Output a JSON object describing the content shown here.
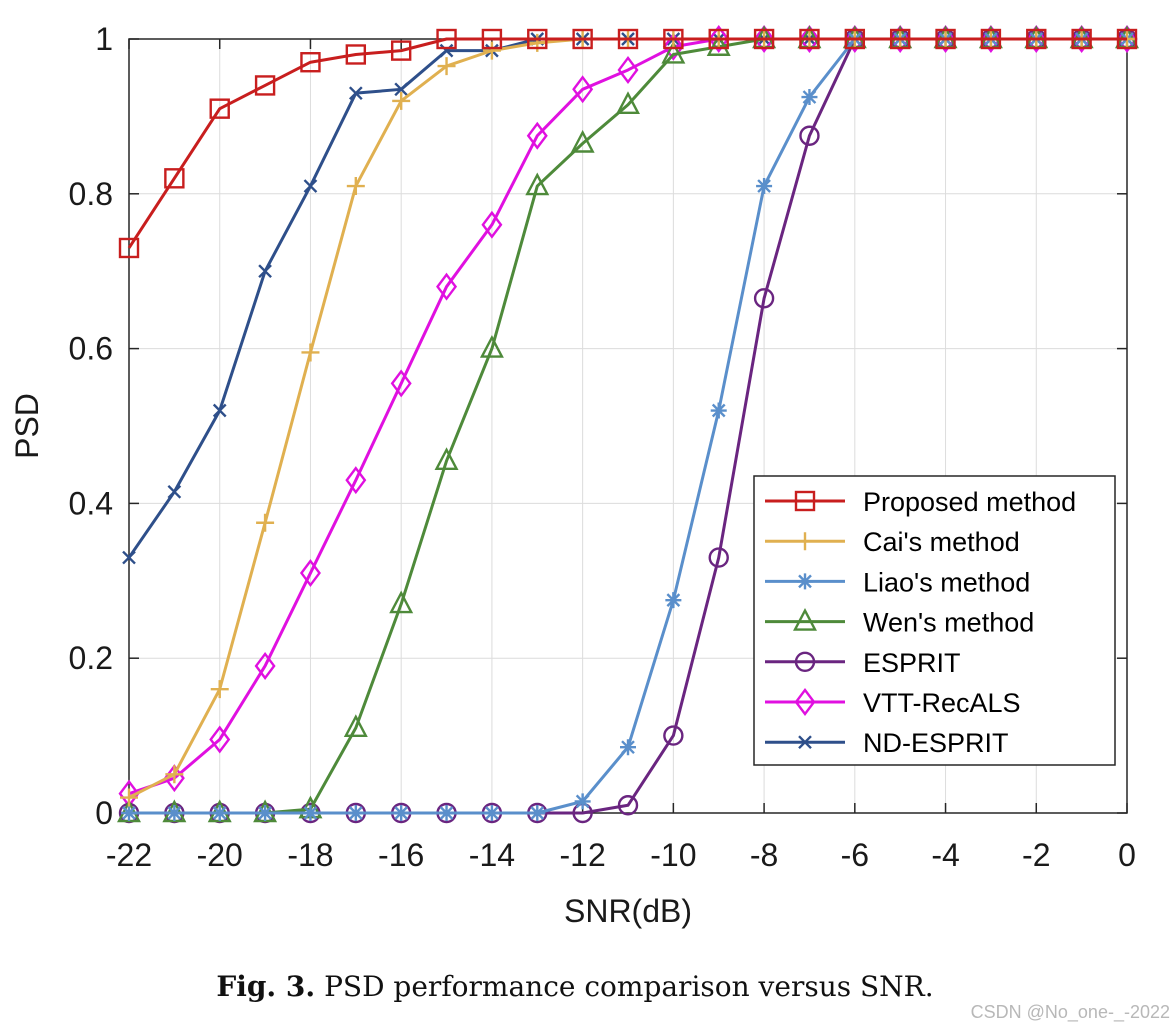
{
  "chart_data": {
    "type": "line",
    "title": "",
    "xlabel": "SNR(dB)",
    "ylabel": "PSD",
    "xlim": [
      -22,
      0
    ],
    "ylim": [
      0,
      1
    ],
    "grid": true,
    "legend_position": "bottom-right",
    "x": [
      -22,
      -21,
      -20,
      -19,
      -18,
      -17,
      -16,
      -15,
      -14,
      -13,
      -12,
      -11,
      -10,
      -9,
      -8,
      -7,
      -6,
      -5,
      -4,
      -3,
      -2,
      -1,
      0
    ],
    "xticks": [
      -22,
      -20,
      -18,
      -16,
      -14,
      -12,
      -10,
      -8,
      -6,
      -4,
      -2,
      0
    ],
    "xtick_labels": [
      "-22",
      "-20",
      "-18",
      "-16",
      "-14",
      "-12",
      "-10",
      "-8",
      "-6",
      "-4",
      "-2",
      "0"
    ],
    "yticks": [
      0,
      0.2,
      0.4,
      0.6,
      0.8,
      1
    ],
    "ytick_labels": [
      "0",
      "0.2",
      "0.4",
      "0.6",
      "0.8",
      "1"
    ],
    "series": [
      {
        "name": "Proposed method",
        "color": "#C81E1E",
        "marker": "square",
        "values": [
          0.73,
          0.82,
          0.91,
          0.94,
          0.97,
          0.98,
          0.985,
          1,
          1,
          1,
          1,
          1,
          1,
          1,
          1,
          1,
          1,
          1,
          1,
          1,
          1,
          1,
          1
        ]
      },
      {
        "name": "Cai's method",
        "color": "#E0B050",
        "marker": "plus",
        "values": [
          0.02,
          0.05,
          0.16,
          0.375,
          0.595,
          0.81,
          0.92,
          0.965,
          0.985,
          0.995,
          1,
          1,
          1,
          1,
          1,
          1,
          1,
          1,
          1,
          1,
          1,
          1,
          1
        ]
      },
      {
        "name": "Liao's method",
        "color": "#5A8FCB",
        "marker": "asterisk",
        "values": [
          0,
          0,
          0,
          0,
          0,
          0,
          0,
          0,
          0,
          0,
          0.015,
          0.085,
          0.275,
          0.52,
          0.81,
          0.925,
          1,
          1,
          1,
          1,
          1,
          1,
          1
        ]
      },
      {
        "name": "Wen's method",
        "color": "#4E8A3A",
        "marker": "triangle",
        "values": [
          0,
          0,
          0,
          0,
          0.005,
          0.11,
          0.27,
          0.455,
          0.6,
          0.81,
          0.865,
          0.915,
          0.98,
          0.99,
          1,
          1,
          1,
          1,
          1,
          1,
          1,
          1,
          1
        ]
      },
      {
        "name": "ESPRIT",
        "color": "#6A2580",
        "marker": "circle",
        "values": [
          0,
          0,
          0,
          0,
          0,
          0,
          0,
          0,
          0,
          0,
          0,
          0.01,
          0.1,
          0.33,
          0.665,
          0.875,
          1,
          1,
          1,
          1,
          1,
          1,
          1
        ]
      },
      {
        "name": "VTT-RecALS",
        "color": "#E010E0",
        "marker": "diamond",
        "values": [
          0.025,
          0.045,
          0.095,
          0.19,
          0.31,
          0.43,
          0.555,
          0.68,
          0.76,
          0.875,
          0.935,
          0.96,
          0.99,
          1,
          1,
          1,
          1,
          1,
          1,
          1,
          1,
          1,
          1
        ]
      },
      {
        "name": "ND-ESPRIT",
        "color": "#2E4F8A",
        "marker": "x",
        "values": [
          0.33,
          0.415,
          0.52,
          0.7,
          0.81,
          0.93,
          0.935,
          0.985,
          0.985,
          1,
          1,
          1,
          1,
          1,
          1,
          1,
          1,
          1,
          1,
          1,
          1,
          1,
          1
        ]
      }
    ]
  },
  "caption": {
    "label": "Fig. 3.",
    "text": "PSD performance comparison versus SNR."
  },
  "watermark": "CSDN @No_one-_-2022"
}
